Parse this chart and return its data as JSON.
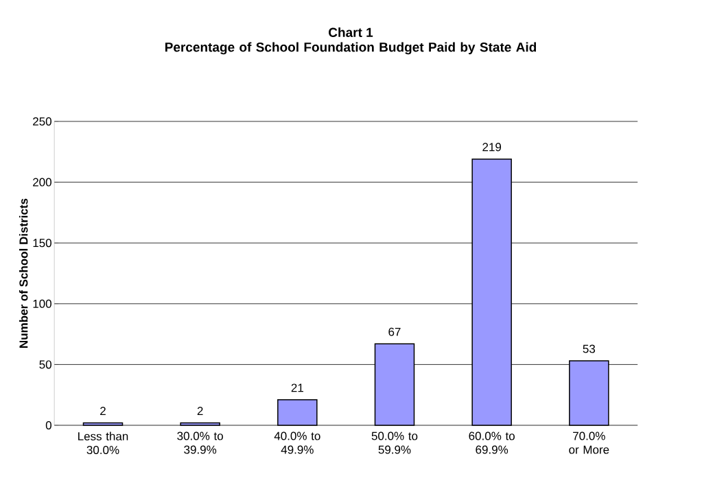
{
  "chart_data": {
    "type": "bar",
    "title": "Chart 1",
    "subtitle": "Percentage of School Foundation Budget Paid by State Aid",
    "ylabel": "Number of School Districts",
    "categories": [
      "Less than 30.0%",
      "30.0% to 39.9%",
      "40.0% to 49.9%",
      "50.0% to 59.9%",
      "60.0% to 69.9%",
      "70.0% or More"
    ],
    "values": [
      2,
      2,
      21,
      67,
      219,
      53
    ],
    "color": "#9999ff",
    "ylim": [
      0,
      250
    ],
    "yticks": [
      0,
      50,
      100,
      150,
      200,
      250
    ],
    "grid": "y",
    "data_labels": true
  }
}
